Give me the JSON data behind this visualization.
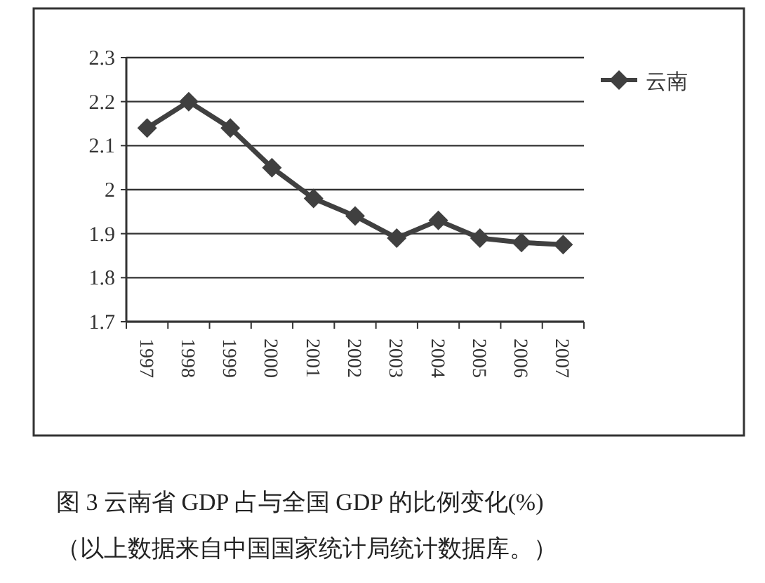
{
  "chart_data": {
    "type": "line",
    "title": "图 3  云南省 GDP 占与全国 GDP 的比例变化(%)",
    "annotations": [
      "（以上数据来自中国国家统计局统计数据库。）"
    ],
    "categories": [
      "1997",
      "1998",
      "1999",
      "2000",
      "2001",
      "2002",
      "2003",
      "2004",
      "2005",
      "2006",
      "2007"
    ],
    "series": [
      {
        "name": "云南",
        "color": "#404040",
        "values": [
          2.14,
          2.2,
          2.14,
          2.05,
          1.98,
          1.94,
          1.89,
          1.93,
          1.89,
          1.88,
          1.875
        ]
      }
    ],
    "ylim": [
      1.7,
      2.3
    ],
    "yticks": [
      1.7,
      1.8,
      1.9,
      2,
      2.1,
      2.2,
      2.3
    ],
    "grid": "y",
    "legend": "right",
    "marker": "diamond",
    "line_style": "solid"
  }
}
